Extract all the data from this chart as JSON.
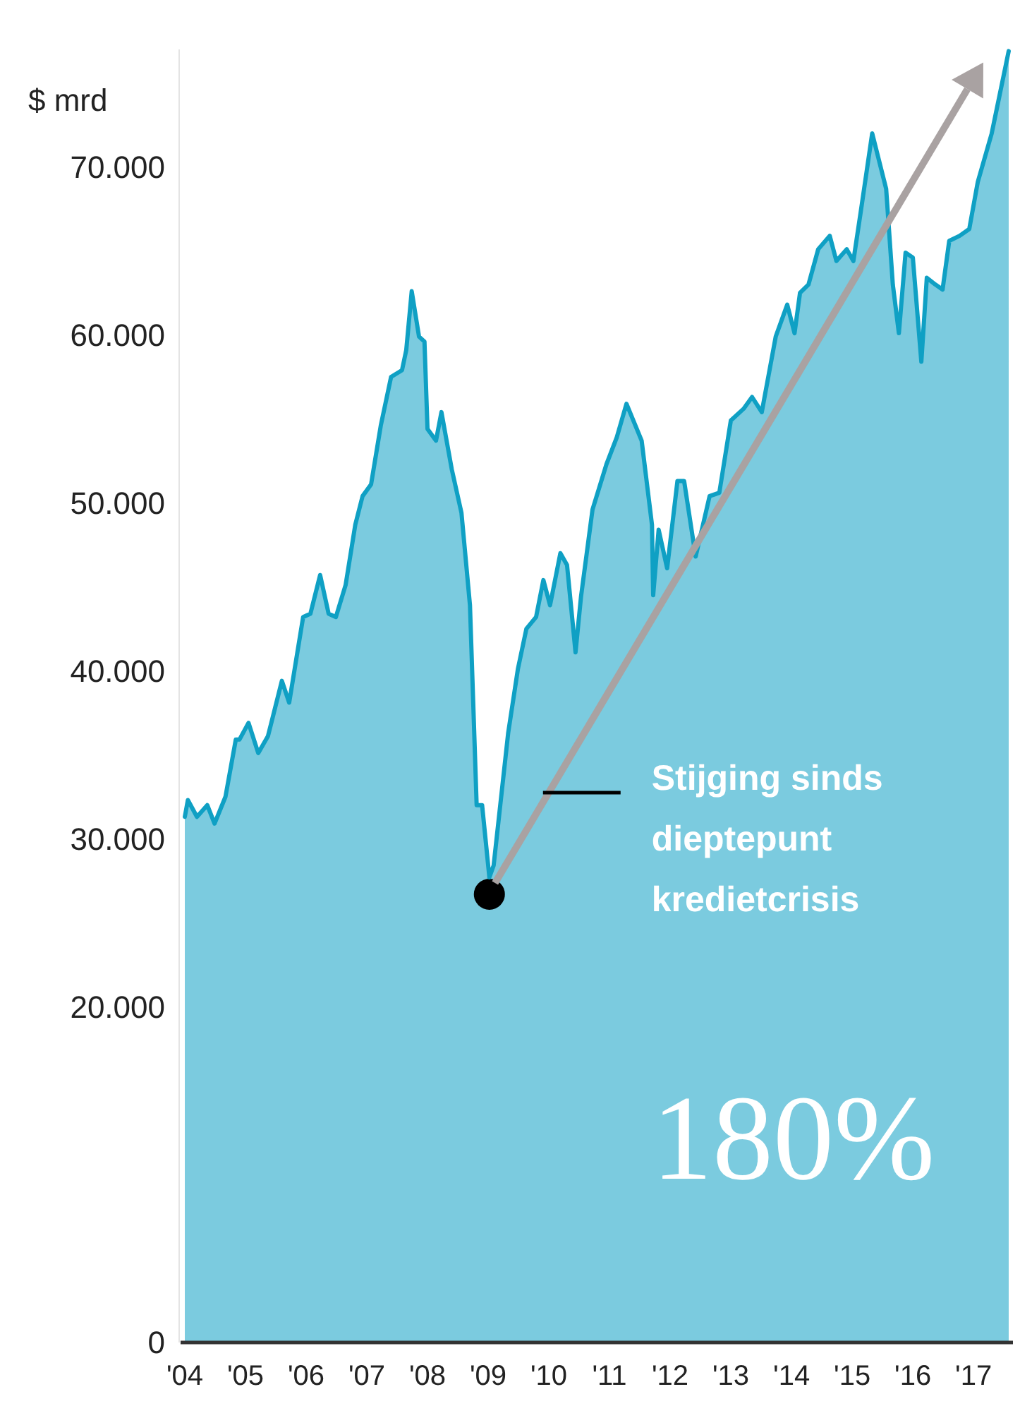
{
  "chart_data": {
    "type": "area",
    "ylabel": "$ mrd",
    "x": [
      2004.0,
      2004.05,
      2004.2,
      2004.37,
      2004.49,
      2004.67,
      2004.84,
      2004.9,
      2005.05,
      2005.21,
      2005.37,
      2005.6,
      2005.72,
      2005.95,
      2006.07,
      2006.23,
      2006.37,
      2006.49,
      2006.65,
      2006.81,
      2006.93,
      2007.07,
      2007.23,
      2007.4,
      2007.58,
      2007.65,
      2007.74,
      2007.86,
      2007.95,
      2008.0,
      2008.14,
      2008.23,
      2008.4,
      2008.56,
      2008.7,
      2008.81,
      2008.9,
      2009.02,
      2009.09,
      2009.33,
      2009.49,
      2009.63,
      2009.79,
      2009.91,
      2010.02,
      2010.19,
      2010.3,
      2010.44,
      2010.53,
      2010.72,
      2010.95,
      2011.12,
      2011.28,
      2011.53,
      2011.7,
      2011.72,
      2011.81,
      2011.95,
      2012.12,
      2012.23,
      2012.42,
      2012.65,
      2012.81,
      2013.0,
      2013.21,
      2013.35,
      2013.51,
      2013.74,
      2013.93,
      2014.05,
      2014.14,
      2014.28,
      2014.44,
      2014.63,
      2014.74,
      2014.91,
      2015.02,
      2015.14,
      2015.33,
      2015.56,
      2015.67,
      2015.77,
      2015.88,
      2016.0,
      2016.14,
      2016.23,
      2016.37,
      2016.49,
      2016.6,
      2016.77,
      2016.93,
      2017.07,
      2017.3,
      2017.58
    ],
    "series": [
      {
        "color": "#0fa0c4",
        "values": [
          31300,
          32300,
          31300,
          32000,
          30900,
          32500,
          35900,
          35900,
          36900,
          35100,
          36100,
          39400,
          38100,
          43200,
          43400,
          45700,
          43400,
          43200,
          45100,
          48700,
          50400,
          51100,
          54600,
          57500,
          57900,
          59100,
          62600,
          59900,
          59600,
          54400,
          53700,
          55400,
          52000,
          49400,
          43900,
          32000,
          32000,
          27700,
          28400,
          36300,
          40100,
          42500,
          43200,
          45400,
          43900,
          47000,
          46300,
          41100,
          44400,
          49600,
          52300,
          53900,
          55900,
          53700,
          48700,
          44500,
          48400,
          46100,
          51300,
          51300,
          46800,
          50400,
          50600,
          54900,
          55600,
          56300,
          55400,
          59900,
          61800,
          60100,
          62500,
          63000,
          65100,
          65900,
          64400,
          65100,
          64400,
          67300,
          72000,
          68700,
          63000,
          60100,
          64900,
          64600,
          58400,
          63400,
          63000,
          62700,
          65600,
          65900,
          66300,
          69100,
          72000,
          76900
        ]
      }
    ],
    "xlim": [
      2003.93,
      2017.65
    ],
    "xticks": [
      {
        "value": 2004,
        "label": "'04"
      },
      {
        "value": 2005,
        "label": "'05"
      },
      {
        "value": 2006,
        "label": "'06"
      },
      {
        "value": 2007,
        "label": "'07"
      },
      {
        "value": 2008,
        "label": "'08"
      },
      {
        "value": 2009,
        "label": "'09"
      },
      {
        "value": 2010,
        "label": "'10"
      },
      {
        "value": 2011,
        "label": "'11"
      },
      {
        "value": 2012,
        "label": "'12"
      },
      {
        "value": 2013,
        "label": "'13"
      },
      {
        "value": 2014,
        "label": "'14"
      },
      {
        "value": 2015,
        "label": "'15"
      },
      {
        "value": 2016,
        "label": "'16"
      },
      {
        "value": 2017,
        "label": "'17"
      }
    ],
    "ylim": [
      0,
      77000
    ],
    "yticks": [
      0,
      {
        "value": 20000,
        "label": "20.000"
      },
      {
        "value": 30000,
        "label": "30.000"
      },
      {
        "value": 40000,
        "label": "40.000"
      },
      {
        "value": 50000,
        "label": "50.000"
      },
      {
        "value": 60000,
        "label": "60.000"
      },
      {
        "value": 70000,
        "label": "70.000"
      }
    ],
    "grid": false,
    "annotations": [
      "Stijging sinds\ndieptepunt\nkredietcrisis",
      "180%"
    ]
  }
}
